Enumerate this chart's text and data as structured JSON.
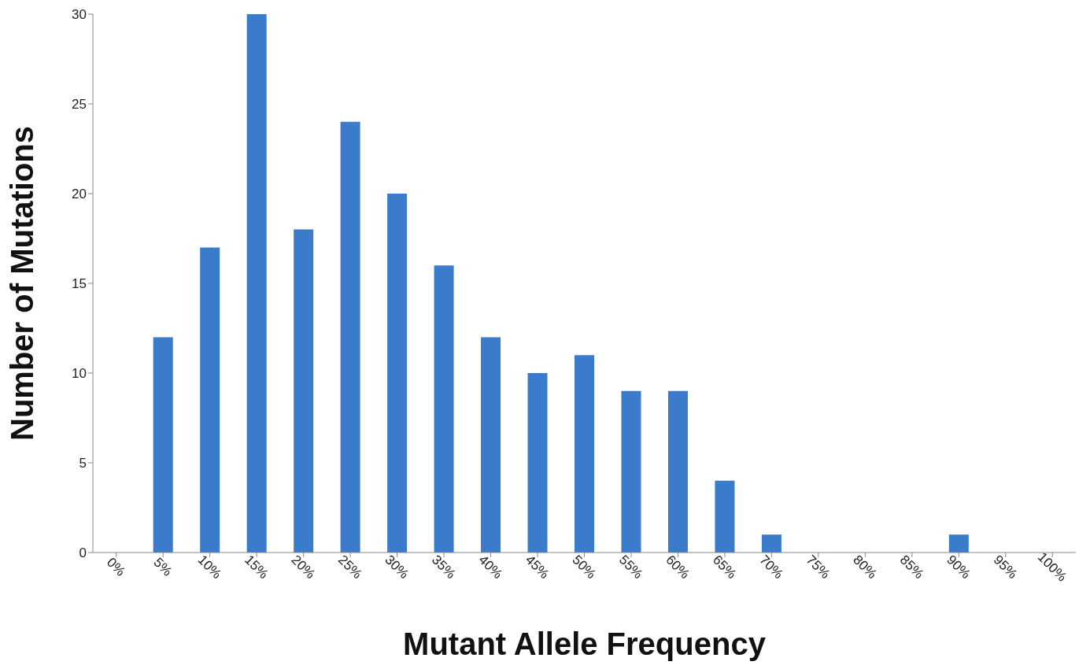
{
  "chart_data": {
    "type": "bar",
    "xlabel": "Mutant Allele Frequency",
    "ylabel": "Number of Mutations",
    "categories": [
      "0%",
      "5%",
      "10%",
      "15%",
      "20%",
      "25%",
      "30%",
      "35%",
      "40%",
      "45%",
      "50%",
      "55%",
      "60%",
      "65%",
      "70%",
      "75%",
      "80%",
      "85%",
      "90%",
      "95%",
      "100%"
    ],
    "values": [
      0,
      12,
      17,
      30,
      18,
      24,
      20,
      16,
      12,
      10,
      11,
      9,
      9,
      4,
      1,
      0,
      0,
      0,
      1,
      0,
      0
    ],
    "color": "#3a7bcc",
    "ylim": [
      0,
      30
    ],
    "yticks": [
      0,
      5,
      10,
      15,
      20,
      25,
      30
    ]
  }
}
